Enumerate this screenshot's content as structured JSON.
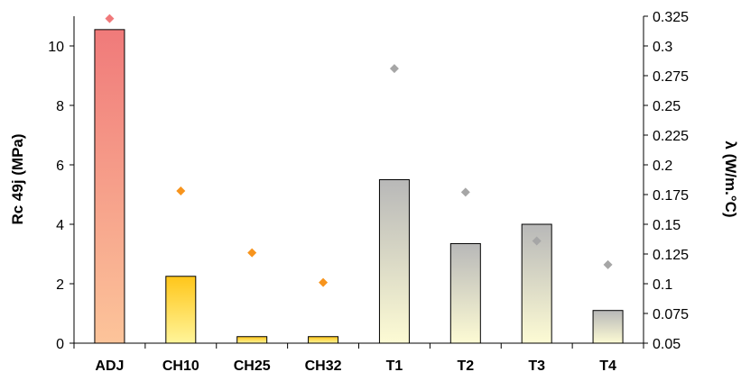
{
  "chart_data": {
    "type": "bar",
    "categories": [
      "ADJ",
      "CH10",
      "CH25",
      "CH32",
      "T1",
      "T2",
      "T3",
      "T4"
    ],
    "series": [
      {
        "values": [
          10.55,
          2.25,
          0.22,
          0.22,
          5.5,
          3.35,
          4.0,
          1.1
        ],
        "axis": "left"
      },
      {
        "type": "scatter",
        "values": [
          0.323,
          0.178,
          0.126,
          0.101,
          0.281,
          0.177,
          0.136,
          0.116
        ],
        "axis": "right"
      }
    ],
    "ylabel": "Rc 49j (MPa)",
    "y2label": "λ (W/m.°C)",
    "ylim": [
      0,
      11
    ],
    "y2lim": [
      0.05,
      0.325
    ],
    "yticks": [
      "0",
      "2",
      "4",
      "6",
      "8",
      "10"
    ],
    "y2ticks": [
      "0.05",
      "0.075",
      "0.1",
      "0.125",
      "0.15",
      "0.175",
      "0.2",
      "0.225",
      "0.25",
      "0.275",
      "0.3",
      "0.325"
    ],
    "grid": false,
    "legend": "none",
    "colors": {
      "red_bar_top": "#f07a7a",
      "red_bar_bottom": "#fcc49a",
      "yellow_bar_top": "#ffc61a",
      "yellow_bar_bottom": "#fff59a",
      "grey_bar_top": "#b8b8b8",
      "grey_bar_bottom": "#fdfbd4",
      "marker_red": "#f0797a",
      "marker_orange": "#f7941d",
      "marker_grey": "#a6a6a6"
    },
    "bar_styles": [
      "red",
      "yellow",
      "yellow",
      "yellow",
      "grey",
      "grey",
      "grey",
      "grey"
    ],
    "marker_styles": [
      "red",
      "orange",
      "orange",
      "orange",
      "grey",
      "grey",
      "grey",
      "grey"
    ]
  }
}
